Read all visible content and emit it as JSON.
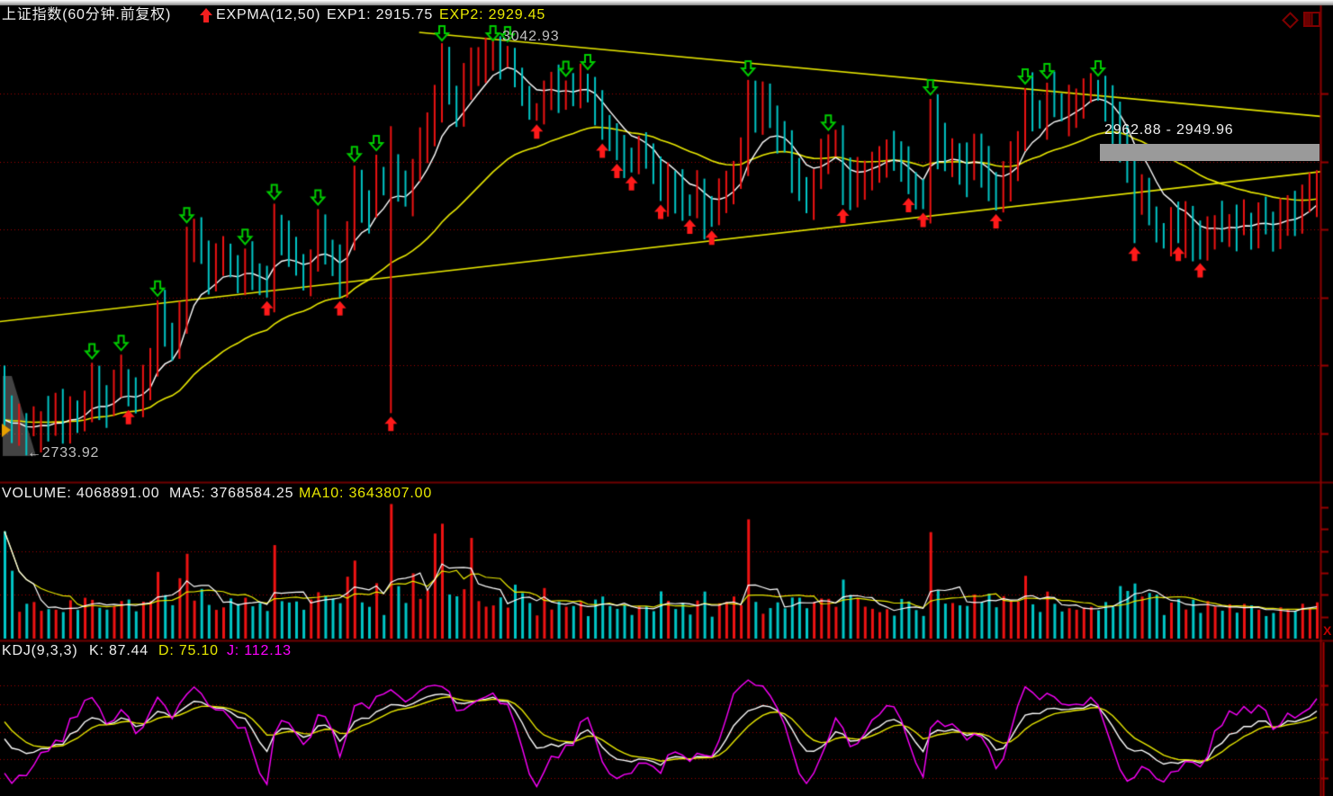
{
  "header": {
    "title": "上证指数(60分钟.前复权)",
    "indicator": "EXPMA(12,50)",
    "exp1": "EXP1: 2915.75",
    "exp2": "EXP2: 2929.45"
  },
  "price_panel": {
    "peak_label": "3042.93",
    "low_label": "←2733.92",
    "range_tooltip": "2962.88 - 2949.96"
  },
  "volume_panel": {
    "volume_label": "VOLUME: 4068891.00",
    "ma5_label": "MA5: 3768584.25",
    "ma10_label": "MA10: 3643807.00"
  },
  "kdj_panel": {
    "kdj_label": "KDJ(9,3,3)",
    "k_label": "K: 87.44",
    "d_label": "D: 75.10",
    "j_label": "J: 112.13"
  },
  "right_axis": {
    "close_marker": "X"
  },
  "colors": {
    "up": "#ee1212",
    "down": "#00c6c6",
    "ema_fast": "#ffffff",
    "ema_slow": "#e8e800",
    "trendline": "#e6e600",
    "grid": "#a00000",
    "divider": "#700000",
    "border": "#8b0000",
    "k": "#ffffff",
    "d": "#e8e800",
    "j": "#ff00ff",
    "buy_arrow": "#ff1a1a",
    "sell_arrow": "#00cc00",
    "tooltip_bar": "#9a9a9a"
  },
  "chart_data": {
    "type": "candlestick",
    "panels": [
      "price EXPMA(12,50)",
      "volume MA5 MA10",
      "KDJ(9,3,3)"
    ],
    "bar_count": 181,
    "price_gridlines": [
      3000,
      2950,
      2900,
      2850,
      2800,
      2750
    ],
    "price_peak": 3042.93,
    "price_low": 2733.92,
    "exp1": 2915.75,
    "exp2": 2929.45,
    "volume_current": 4068891.0,
    "volume_ma5": 3768584.25,
    "volume_ma10": 3643807.0,
    "kdj": {
      "k": 87.44,
      "d": 75.1,
      "j": 112.13
    },
    "kdj_gridlines": [
      100,
      80,
      50,
      20,
      0
    ],
    "volume_gridlines": [
      4000000,
      2000000
    ],
    "closes": [
      2760,
      2750,
      2757,
      2746,
      2754,
      2760,
      2755,
      2764,
      2758,
      2768,
      2762,
      2773,
      2785,
      2776,
      2770,
      2780,
      2792,
      2781,
      2774,
      2786,
      2800,
      2836,
      2822,
      2814,
      2842,
      2886,
      2898,
      2880,
      2868,
      2876,
      2882,
      2870,
      2862,
      2876,
      2868,
      2858,
      2854,
      2905,
      2892,
      2882,
      2872,
      2866,
      2880,
      2900,
      2886,
      2872,
      2860,
      2892,
      2934,
      2920,
      2912,
      2940,
      2936,
      2950,
      2930,
      2922,
      2946,
      2960,
      2974,
      2992,
      3016,
      3002,
      2992,
      3010,
      3018,
      3024,
      3030,
      3036,
      3026,
      3030,
      3012,
      2998,
      2988,
      2986,
      3000,
      3006,
      2996,
      3004,
      2998,
      3008,
      3004,
      2990,
      2972,
      2964,
      2958,
      2952,
      2950,
      2960,
      2952,
      2944,
      2926,
      2936,
      2928,
      2920,
      2916,
      2926,
      2910,
      2908,
      2920,
      2930,
      2942,
      2954,
      2996,
      2986,
      2992,
      2982,
      2972,
      2962,
      2944,
      2930,
      2922,
      2936,
      2950,
      2960,
      2966,
      2938,
      2924,
      2936,
      2944,
      2952,
      2954,
      2960,
      2956,
      2946,
      2932,
      2924,
      2920,
      2982,
      2962,
      2950,
      2958,
      2948,
      2940,
      2954,
      2946,
      2932,
      2922,
      2936,
      2950,
      2962,
      2996,
      2988,
      2984,
      3000,
      2992,
      2986,
      2992,
      2998,
      3002,
      3010,
      3002,
      2990,
      2980,
      2960,
      2944,
      2918,
      2930,
      2912,
      2898,
      2894,
      2906,
      2896,
      2904,
      2890,
      2884,
      2894,
      2902,
      2898,
      2906,
      2900,
      2908,
      2902,
      2910,
      2906,
      2900,
      2908,
      2914,
      2910,
      2918,
      2926,
      2934
    ],
    "forced_bars": {
      "0": {
        "high": 2800,
        "low": 2752
      },
      "1": {
        "high": 2778,
        "low": 2743
      },
      "2": {
        "high": 2772,
        "low": 2741
      },
      "3": {
        "high": 2765,
        "low": 2733.92
      },
      "4": {
        "high": 2770,
        "low": 2748
      },
      "12": {
        "high": 2802
      },
      "16": {
        "high": 2808
      },
      "17": {
        "low": 2770
      },
      "21": {
        "high": 2848
      },
      "25": {
        "high": 2902
      },
      "33": {
        "high": 2886
      },
      "36": {
        "low": 2850
      },
      "37": {
        "high": 2919
      },
      "43": {
        "high": 2915
      },
      "46": {
        "low": 2850
      },
      "48": {
        "high": 2947
      },
      "51": {
        "high": 2955
      },
      "53": {
        "high": 2976,
        "low": 2765
      },
      "60": {
        "high": 3037
      },
      "67": {
        "high": 3042.93
      },
      "69": {
        "high": 3035
      },
      "73": {
        "low": 2980
      },
      "82": {
        "low": 2966
      },
      "84": {
        "low": 2951
      },
      "86": {
        "low": 2942
      },
      "90": {
        "low": 2921
      },
      "94": {
        "low": 2910
      },
      "97": {
        "low": 2902
      },
      "102": {
        "high": 3010
      },
      "110": {
        "low": 2912
      },
      "113": {
        "high": 2970
      },
      "115": {
        "low": 2918
      },
      "124": {
        "low": 2926
      },
      "126": {
        "low": 2915
      },
      "127": {
        "high": 2996
      },
      "136": {
        "low": 2914
      },
      "140": {
        "high": 3004
      },
      "143": {
        "high": 3008
      },
      "149": {
        "high": 3015
      },
      "150": {
        "high": 3010
      },
      "155": {
        "low": 2890
      },
      "161": {
        "low": 2890
      },
      "164": {
        "low": 2878
      }
    },
    "sell_signal_bars": [
      12,
      16,
      21,
      25,
      33,
      37,
      43,
      48,
      51,
      60,
      67,
      69,
      77,
      80,
      102,
      113,
      127,
      140,
      143,
      150
    ],
    "buy_signal_bars": [
      17,
      36,
      46,
      53,
      73,
      82,
      84,
      86,
      90,
      94,
      97,
      115,
      124,
      126,
      136,
      155,
      161,
      164
    ],
    "trendlines": [
      {
        "from_bar": 57,
        "from_price": 3045,
        "to_bar": 183,
        "to_price": 2982
      },
      {
        "from_bar": -1,
        "from_price": 2832,
        "to_bar": 183,
        "to_price": 2944
      }
    ],
    "volume_overrides": {
      "0": 4900000,
      "1": 3100000,
      "53": 6150000,
      "59": 4800000,
      "60": 5250000,
      "64": 4600000,
      "102": 5450000
    },
    "volume_model": {
      "base": 750000,
      "per_point": 62000,
      "noise": 450000,
      "boost_from": 55,
      "boost_to": 75,
      "boost": 1.12,
      "min": 700000,
      "max": 5000000
    }
  }
}
